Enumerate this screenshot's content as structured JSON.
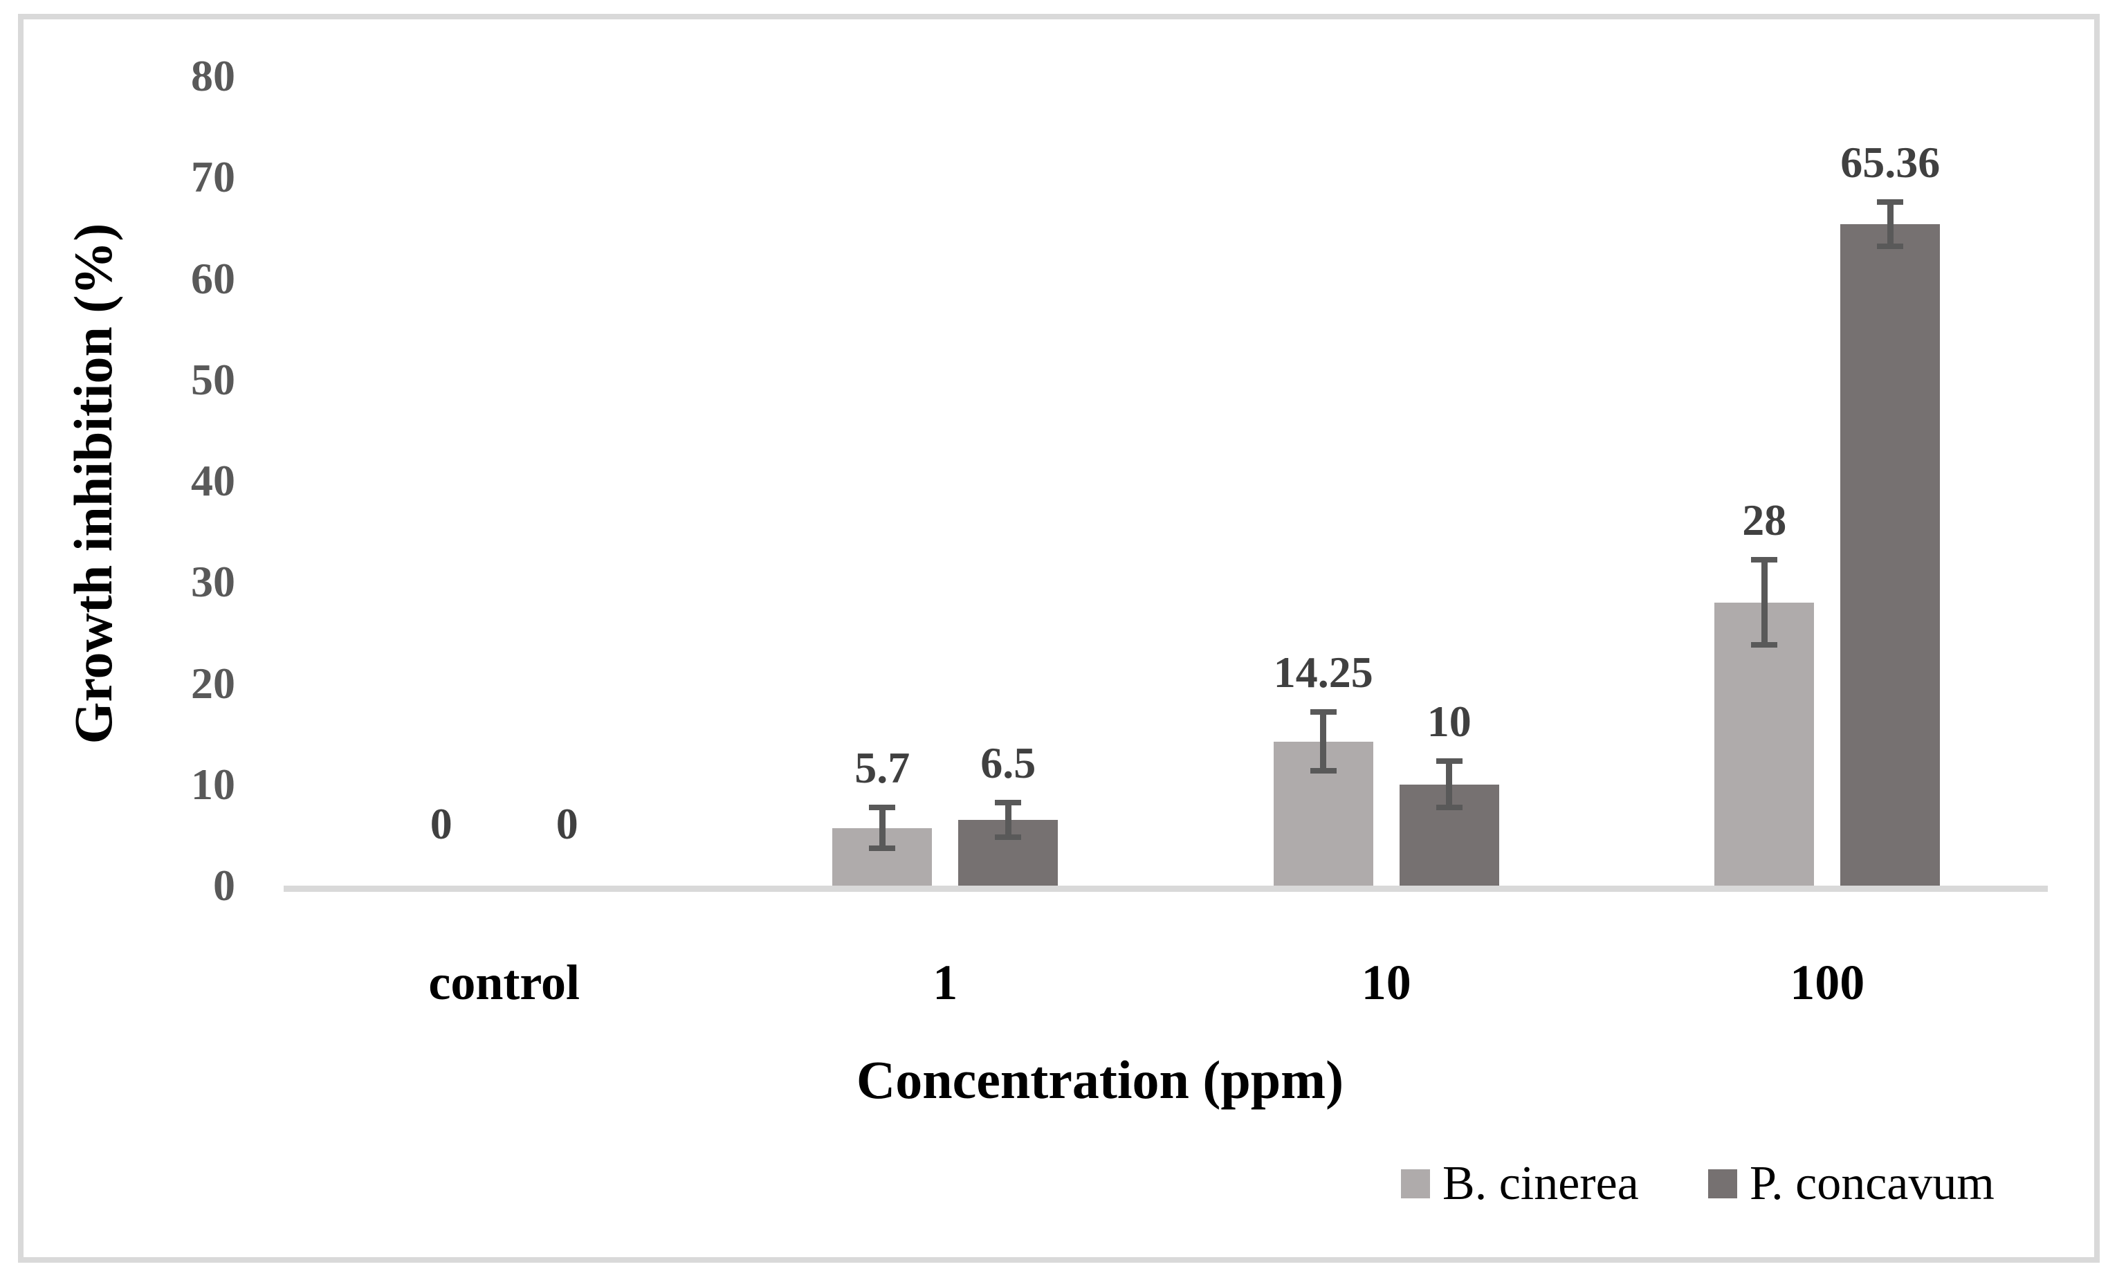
{
  "figure": {
    "background_color": "#ffffff",
    "frame_color": "#d9d9d9"
  },
  "chart_data": {
    "type": "bar",
    "title": "",
    "xlabel": "Concentration (ppm)",
    "ylabel": "Growth inhibition (%)",
    "categories": [
      "control",
      "1",
      "10",
      "100"
    ],
    "series": [
      {
        "name": "B. cinerea",
        "color": "#AFABAB",
        "values": [
          0,
          5.7,
          14.25,
          28
        ],
        "error_bars": [
          0,
          2.0,
          2.9,
          4.2
        ],
        "data_labels": [
          "0",
          "5.7",
          "14.25",
          "28"
        ]
      },
      {
        "name": "P. concavum",
        "color": "#767171",
        "values": [
          0,
          6.5,
          10,
          65.36
        ],
        "error_bars": [
          0,
          1.7,
          2.3,
          2.2
        ],
        "data_labels": [
          "0",
          "6.5",
          "10",
          "65.36"
        ]
      }
    ],
    "y_ticks": [
      0,
      10,
      20,
      30,
      40,
      50,
      60,
      70,
      80
    ],
    "ylim": [
      0,
      80
    ],
    "grid": false,
    "legend_position": "bottom-right",
    "colors": {
      "axis_line": "#d9d9d9",
      "tick_label": "#595959",
      "data_label": "#404040",
      "error_bar": "#595959",
      "category_label": "#000000",
      "axis_title": "#000000",
      "legend_text": "#000000"
    }
  }
}
